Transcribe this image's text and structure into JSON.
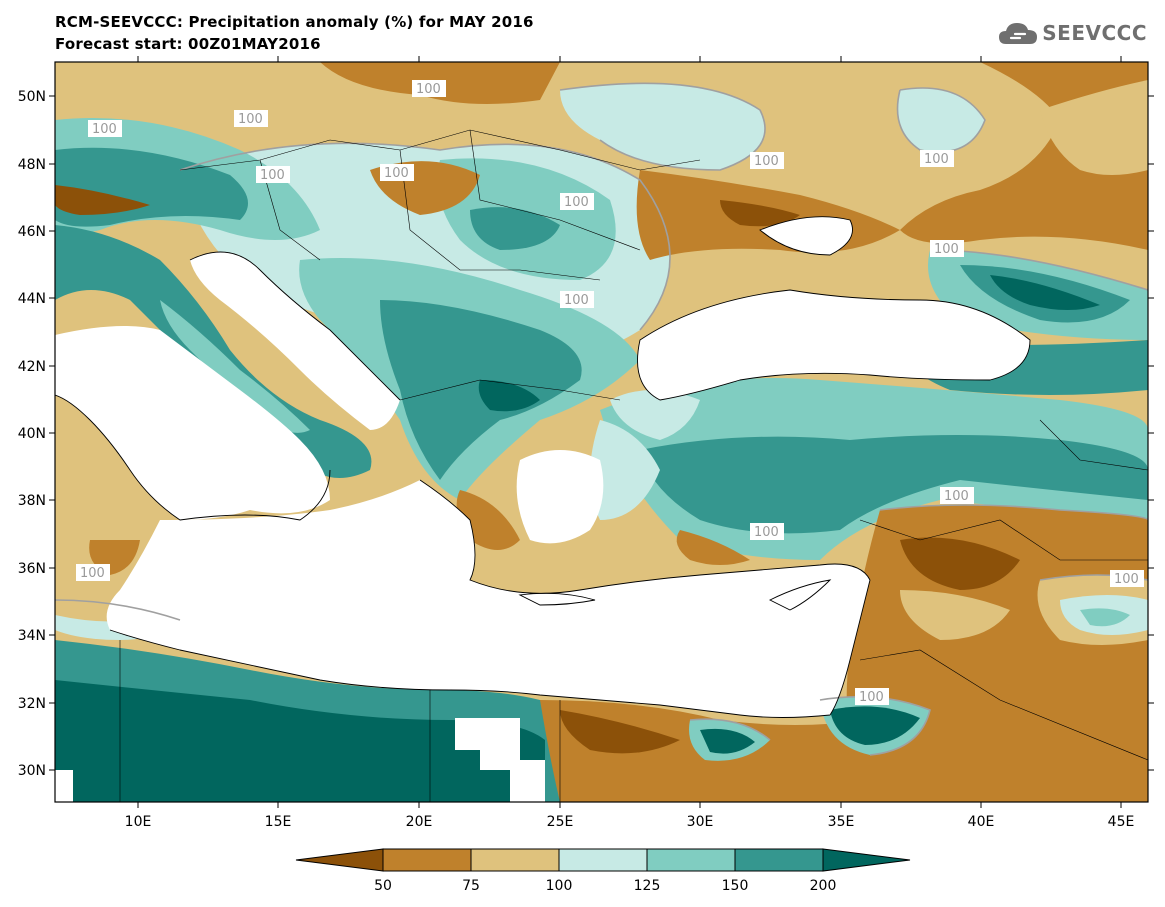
{
  "header": {
    "title": "RCM-SEEVCCC: Precipitation anomaly (%) for MAY 2016",
    "subtitle": "Forecast start: 00Z01MAY2016",
    "logo_text": "SEEVCCC"
  },
  "axes": {
    "lon_ticks": [
      "10E",
      "15E",
      "20E",
      "25E",
      "30E",
      "35E",
      "40E",
      "45E"
    ],
    "lat_ticks": [
      "50N",
      "48N",
      "46N",
      "44N",
      "42N",
      "40N",
      "38N",
      "36N",
      "34N",
      "32N",
      "30N"
    ]
  },
  "contour_labels": [
    "100",
    "100",
    "100",
    "100",
    "100",
    "100",
    "100",
    "100",
    "100",
    "100",
    "100",
    "100",
    "100",
    "100",
    "100"
  ],
  "colorbar": {
    "ticks": [
      "50",
      "75",
      "100",
      "125",
      "150",
      "200"
    ],
    "colors": [
      "#8c5109",
      "#bf812c",
      "#dfc27d",
      "#c7eae5",
      "#80cdc1",
      "#35978f",
      "#01665e"
    ]
  },
  "colors": {
    "land_dry_strong": "#8c5109",
    "land_dry": "#bf812c",
    "land_slightly_dry": "#dfc27d",
    "land_slightly_wet": "#c7eae5",
    "land_wet": "#80cdc1",
    "land_very_wet": "#35978f",
    "land_extreme_wet": "#01665e",
    "sea": "#ffffff"
  }
}
